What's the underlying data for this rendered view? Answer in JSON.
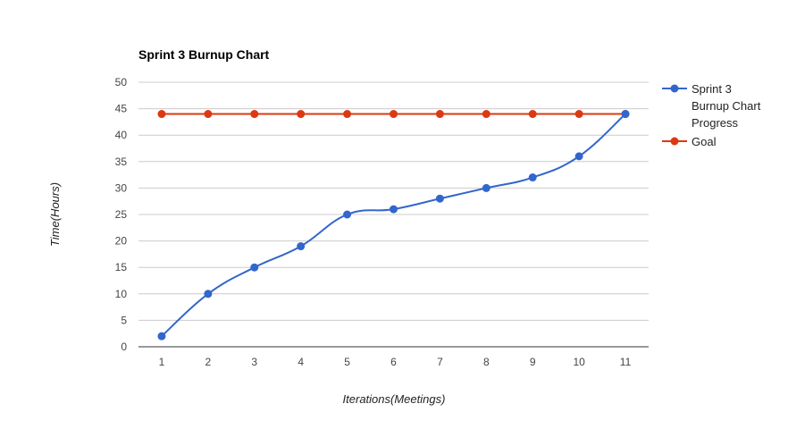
{
  "chart_data": {
    "type": "line",
    "title": "Sprint 3 Burnup Chart",
    "xlabel": "Iterations(Meetings)",
    "ylabel": "Time(Hours)",
    "categories": [
      "1",
      "2",
      "3",
      "4",
      "5",
      "6",
      "7",
      "8",
      "9",
      "10",
      "11"
    ],
    "ylim": [
      0,
      50
    ],
    "yticks": [
      "0",
      "5",
      "10",
      "15",
      "20",
      "25",
      "30",
      "35",
      "40",
      "45",
      "50"
    ],
    "grid": true,
    "legend_position": "right",
    "series": [
      {
        "name_lines": [
          "Sprint 3",
          "Burnup Chart",
          "Progress"
        ],
        "color": "#3366cc",
        "smooth": true,
        "values": [
          2,
          10,
          15,
          19,
          25,
          26,
          28,
          30,
          32,
          36,
          44
        ]
      },
      {
        "name_lines": [
          "Goal"
        ],
        "color": "#dc3912",
        "smooth": false,
        "values": [
          44,
          44,
          44,
          44,
          44,
          44,
          44,
          44,
          44,
          44,
          44
        ]
      }
    ]
  }
}
